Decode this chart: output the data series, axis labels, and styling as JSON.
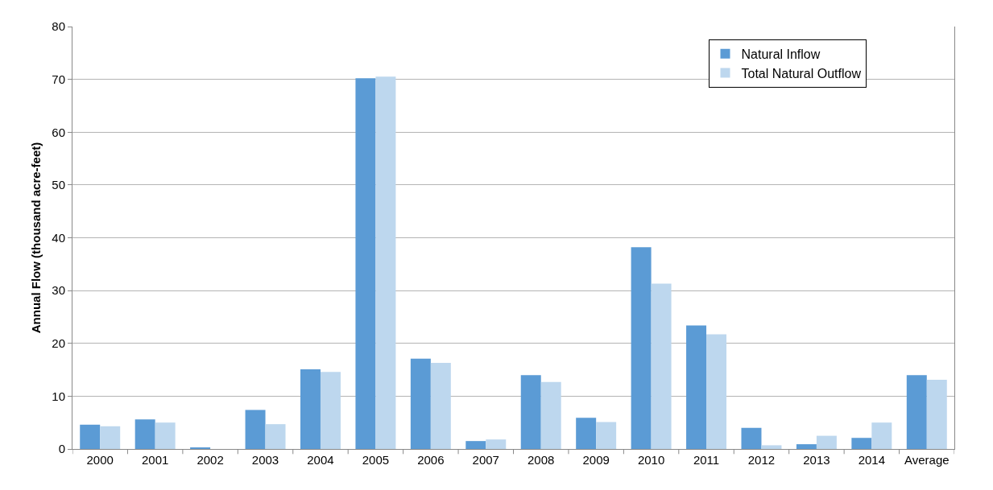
{
  "chart_data": {
    "type": "bar",
    "ylabel": "Annual Flow (thousand acre-feet)",
    "categories": [
      "2000",
      "2001",
      "2002",
      "2003",
      "2004",
      "2005",
      "2006",
      "2007",
      "2008",
      "2009",
      "2010",
      "2011",
      "2012",
      "2013",
      "2014",
      "Average"
    ],
    "series": [
      {
        "name": "Natural Inflow",
        "color": "#5b9bd5",
        "values": [
          4.6,
          5.6,
          0.2,
          7.4,
          15.1,
          70.2,
          17.1,
          1.5,
          14.0,
          5.9,
          38.2,
          23.4,
          4.0,
          0.9,
          2.1,
          14.0
        ]
      },
      {
        "name": "Total Natural Outflow",
        "color": "#bdd7ee",
        "values": [
          4.3,
          5.0,
          0,
          4.7,
          14.6,
          70.5,
          16.3,
          1.8,
          12.7,
          5.1,
          31.3,
          21.7,
          0.7,
          2.5,
          5.0,
          13.1
        ]
      }
    ],
    "ylim": [
      0,
      80
    ],
    "yticks": [
      0,
      10,
      20,
      30,
      40,
      50,
      60,
      70,
      80
    ],
    "grid": "y",
    "legend": "top right"
  }
}
